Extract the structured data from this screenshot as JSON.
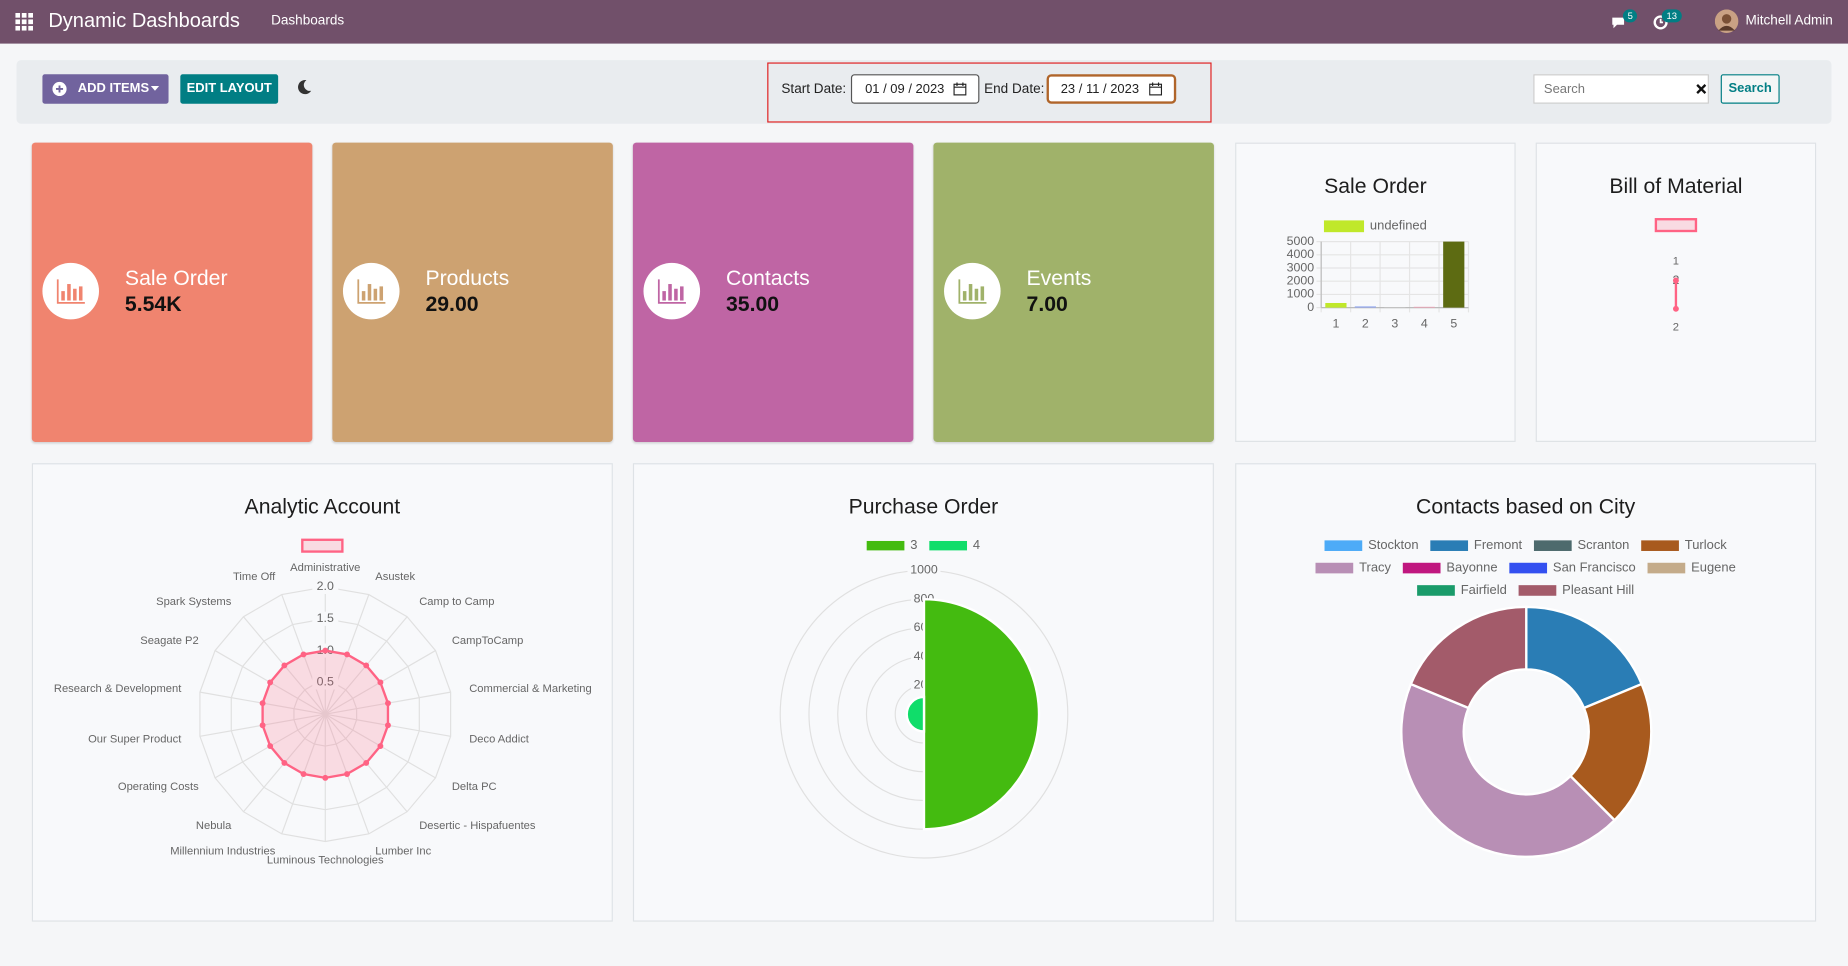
{
  "navbar": {
    "app": "Dynamic Dashboards",
    "menu": "Dashboards",
    "messages_badge": "5",
    "activities_badge": "13",
    "user": "Mitchell Admin"
  },
  "toolbar": {
    "add_items": "ADD ITEMS",
    "edit_layout": "EDIT LAYOUT",
    "start_label": "Start Date:",
    "start_date": "01 / 09 / 2023",
    "end_label": "End Date:",
    "end_date": "23 / 11 / 2023",
    "search_placeholder": "Search",
    "search_button": "Search"
  },
  "tiles": [
    {
      "title": "Sale Order",
      "value": "5.54K",
      "color": "#f0846f"
    },
    {
      "title": "Products",
      "value": "29.00",
      "color": "#cda271"
    },
    {
      "title": "Contacts",
      "value": "35.00",
      "color": "#bf65a4"
    },
    {
      "title": "Events",
      "value": "7.00",
      "color": "#a0b26a"
    }
  ],
  "chart_data": [
    {
      "type": "bar",
      "title": "Sale Order",
      "categories": [
        "1",
        "2",
        "3",
        "4",
        "5"
      ],
      "series": [
        {
          "name": "undefined",
          "color": "#c0e82a",
          "colors": [
            "#c0e82a",
            "#8ea4f0",
            "#c9c9c9",
            "#f0a0b4",
            "#5d6b12"
          ],
          "values": [
            350,
            90,
            40,
            60,
            5000
          ]
        }
      ],
      "ylim": [
        0,
        5000
      ],
      "yticks": [
        0,
        1000,
        2000,
        3000,
        4000,
        5000
      ],
      "grid": true
    },
    {
      "type": "radar",
      "title": "Bill of Material",
      "categories": [
        "1",
        "2"
      ],
      "series": [
        {
          "color": "#ff6384",
          "values": [
            2,
            2
          ]
        }
      ],
      "rlim": [
        0,
        2
      ],
      "rticks": [
        2
      ],
      "grid": true
    },
    {
      "type": "radar",
      "title": "Analytic Account",
      "categories": [
        "Administrative",
        "Asustek",
        "Camp to Camp",
        "CampToCamp",
        "Commercial & Marketing",
        "Deco Addict",
        "Delta PC",
        "Desertic - Hispafuentes",
        "Lumber Inc",
        "Luminous Technologies",
        "Millennium Industries",
        "Nebula",
        "Operating Costs",
        "Our Super Product",
        "Research & Development",
        "Seagate P2",
        "Spark Systems",
        "Time Off"
      ],
      "series": [
        {
          "color": "#ff6384",
          "values": [
            1,
            1,
            1,
            1,
            1,
            1,
            1,
            1,
            1,
            1,
            1,
            1,
            1,
            1,
            1,
            1,
            1,
            1
          ]
        }
      ],
      "rlim": [
        0,
        2
      ],
      "rticks": [
        0.5,
        {
          "value": 1,
          "label": "1.0"
        },
        1.5,
        {
          "value": 2,
          "label": "2.0"
        }
      ],
      "grid": true
    },
    {
      "type": "polarArea",
      "title": "Purchase Order",
      "categories": [
        "3",
        "4"
      ],
      "colors": [
        "#44bb10",
        "#10dd6a"
      ],
      "values": [
        800,
        120
      ],
      "rlim": [
        0,
        1000
      ],
      "rticks": [
        200,
        400,
        600,
        800,
        1000
      ],
      "grid": true
    },
    {
      "type": "doughnut",
      "title": "Contacts based on City",
      "categories": [
        "Stockton",
        "Fremont",
        "Scranton",
        "Turlock",
        "Tracy",
        "Bayonne",
        "San Francisco",
        "Eugene",
        "Fairfield",
        "Pleasant Hill"
      ],
      "colors": [
        "#4dabf7",
        "#2a7db5",
        "#4d6a6d",
        "#a85a1e",
        "#b88fb5",
        "#c0177f",
        "#3450f0",
        "#c4ab8a",
        "#1a9b6a",
        "#a35b6a"
      ],
      "values": [
        0,
        3,
        0,
        3,
        7,
        0,
        0,
        0,
        0,
        3
      ]
    }
  ]
}
